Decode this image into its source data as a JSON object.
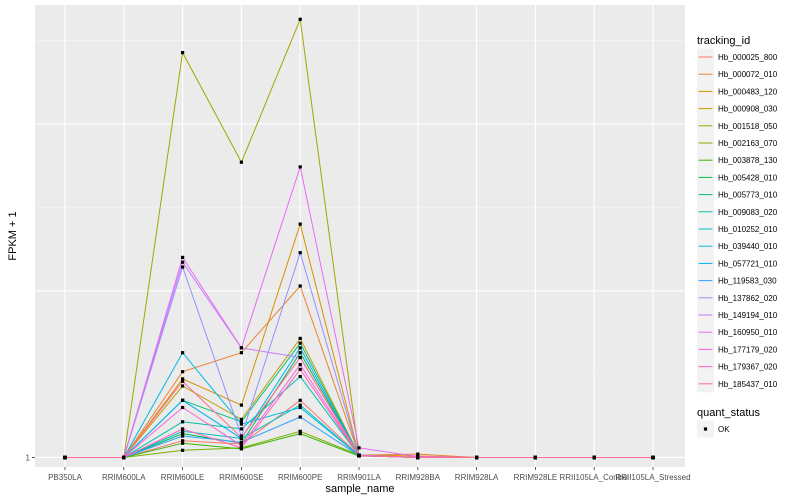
{
  "chart_data": {
    "type": "line",
    "xlabel": "sample_name",
    "ylabel": "FPKM + 1",
    "y_tick_labels": [
      "1"
    ],
    "categories": [
      "PB350LA",
      "RRIM600LA",
      "RRIM600LE",
      "RRIM600SE",
      "RRIM600PE",
      "RRIM901LA",
      "RRIM928BA",
      "RRIM928LA",
      "RRIM928LE",
      "RRII105LA_Control",
      "RRII105LA_Stressed"
    ],
    "ylim": [
      0.8,
      10.5
    ],
    "grid": true,
    "legend_title": "tracking_id",
    "legend_placement": "right",
    "shape_legend": {
      "title": "quant_status",
      "items": [
        {
          "label": "OK",
          "shape": "square"
        }
      ]
    },
    "series": [
      {
        "name": "Hb_000025_800",
        "color": "#F8766D",
        "values": [
          1,
          1,
          1.35,
          1.28,
          2.2,
          1.05,
          1,
          1,
          1,
          1,
          1
        ]
      },
      {
        "name": "Hb_000072_010",
        "color": "#EA8331",
        "values": [
          1,
          1,
          2.8,
          3.2,
          4.6,
          1.05,
          1.07,
          1,
          1,
          1,
          1
        ]
      },
      {
        "name": "Hb_000483_120",
        "color": "#D89000",
        "values": [
          1,
          1,
          2.65,
          2.1,
          5.9,
          1.05,
          1.03,
          1,
          1,
          1,
          1
        ]
      },
      {
        "name": "Hb_000908_030",
        "color": "#C09B00",
        "values": [
          1,
          1,
          2.5,
          1.8,
          3.5,
          1.05,
          1,
          1,
          1,
          1,
          1
        ]
      },
      {
        "name": "Hb_001518_050",
        "color": "#A3A500",
        "values": [
          1,
          1,
          9.5,
          7.2,
          10.2,
          1.05,
          1,
          1,
          1,
          1,
          1
        ]
      },
      {
        "name": "Hb_002163_070",
        "color": "#7CAE00",
        "values": [
          1,
          1,
          1.15,
          1.2,
          1.55,
          1.05,
          1,
          1,
          1,
          1,
          1
        ]
      },
      {
        "name": "Hb_003878_130",
        "color": "#39B600",
        "values": [
          1,
          1,
          1.3,
          1.18,
          1.5,
          1.03,
          1,
          1,
          1,
          1,
          1
        ]
      },
      {
        "name": "Hb_005428_010",
        "color": "#00BB4E",
        "values": [
          1,
          1,
          1.5,
          1.3,
          3.2,
          1.04,
          1,
          1,
          1,
          1,
          1
        ]
      },
      {
        "name": "Hb_005773_010",
        "color": "#00BF7D",
        "values": [
          1,
          1,
          2.2,
          1.75,
          3.4,
          1.05,
          1,
          1,
          1,
          1,
          1
        ]
      },
      {
        "name": "Hb_009083_020",
        "color": "#00C1A3",
        "values": [
          1,
          1,
          1.75,
          1.6,
          2.7,
          1.04,
          1,
          1,
          1,
          1,
          1
        ]
      },
      {
        "name": "Hb_010252_010",
        "color": "#00BFC4",
        "values": [
          1,
          1,
          1.55,
          1.4,
          2.1,
          1.04,
          1,
          1,
          1,
          1,
          1
        ]
      },
      {
        "name": "Hb_039440_010",
        "color": "#00BAE0",
        "values": [
          1,
          1,
          3.2,
          1.7,
          2.05,
          1.04,
          1,
          1,
          1,
          1,
          1
        ]
      },
      {
        "name": "Hb_057721_010",
        "color": "#00B0F6",
        "values": [
          1,
          1,
          2.2,
          1.4,
          3.3,
          1.04,
          1,
          1,
          1,
          1,
          1
        ]
      },
      {
        "name": "Hb_119583_030",
        "color": "#35A2FF",
        "values": [
          1,
          1,
          1.45,
          1.32,
          1.85,
          1.04,
          1,
          1,
          1,
          1,
          1
        ]
      },
      {
        "name": "Hb_137862_020",
        "color": "#9590FF",
        "values": [
          1,
          1,
          5.0,
          1.45,
          5.3,
          1.05,
          1,
          1,
          1,
          1,
          1
        ]
      },
      {
        "name": "Hb_149194_010",
        "color": "#C77CFF",
        "values": [
          1,
          1,
          5.1,
          3.3,
          3.1,
          1.05,
          1,
          1,
          1,
          1,
          1
        ]
      },
      {
        "name": "Hb_160950_010",
        "color": "#E76BF3",
        "values": [
          1,
          1,
          5.2,
          3.3,
          7.1,
          1.2,
          1.02,
          1,
          1,
          1,
          1
        ]
      },
      {
        "name": "Hb_177179_020",
        "color": "#FA62DB",
        "values": [
          1,
          1,
          2.05,
          1.25,
          2.95,
          1.04,
          1,
          1,
          1,
          1,
          1
        ]
      },
      {
        "name": "Hb_179367_020",
        "color": "#FF62BC",
        "values": [
          1,
          1,
          1.6,
          1.2,
          2.85,
          1.04,
          1,
          1,
          1,
          1,
          1
        ]
      },
      {
        "name": "Hb_185437_010",
        "color": "#FF6C91",
        "values": [
          1,
          1,
          2.6,
          1.42,
          3.1,
          1.04,
          1,
          1,
          1,
          1,
          1
        ]
      }
    ]
  }
}
